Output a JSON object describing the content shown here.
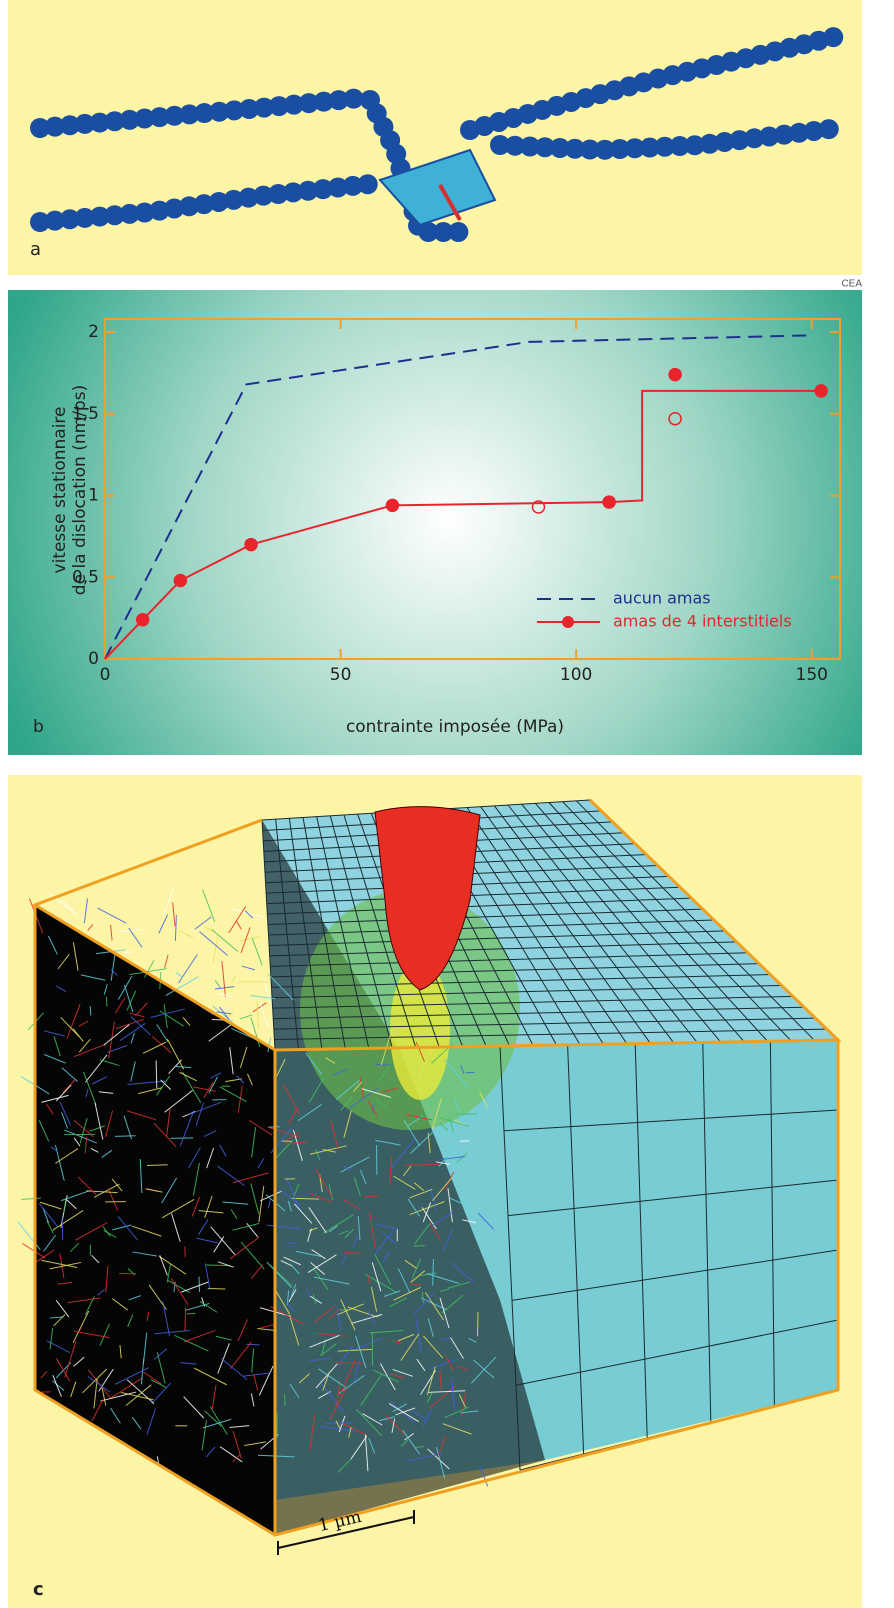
{
  "panel_a": {
    "label": "a"
  },
  "credit": "CEA",
  "panel_b": {
    "label": "b"
  },
  "chart_data": {
    "type": "line",
    "x_label": "contrainte imposée (MPa)",
    "y_label": [
      "vitesse stationnaire",
      "de la dislocation (nm/ps)"
    ],
    "xlim": [
      0,
      156
    ],
    "ylim": [
      0,
      2.08
    ],
    "xticks": [
      0,
      50,
      100,
      150
    ],
    "yticks": [
      0,
      {
        "value": 0.5,
        "label": "0,5"
      },
      1,
      {
        "value": 1.5,
        "label": "1,5"
      },
      2
    ],
    "legend": "lower right",
    "series": [
      {
        "name": "aucun amas",
        "color": "#1f2f8f",
        "dashed": true,
        "x": [
          0,
          30,
          90,
          150
        ],
        "values": [
          0,
          1.68,
          1.94,
          1.98
        ]
      },
      {
        "name": "amas de 4 interstitiels",
        "color": "#e8242c",
        "dashed": false,
        "x": [
          0,
          8,
          16,
          31,
          61,
          107,
          114,
          114,
          152
        ],
        "values": [
          0,
          0.24,
          0.48,
          0.7,
          0.94,
          0.96,
          0.97,
          1.64,
          1.64
        ]
      }
    ],
    "filled_points": {
      "color": "#e8242c",
      "x": [
        8,
        16,
        31,
        61,
        107,
        121,
        152
      ],
      "values": [
        0.24,
        0.48,
        0.7,
        0.94,
        0.96,
        1.74,
        1.64
      ]
    },
    "open_points": {
      "color": "#e8242c",
      "x": [
        92,
        121
      ],
      "values": [
        0.93,
        1.47
      ]
    }
  },
  "panel_c": {
    "label": "c",
    "scale_bar": "1 µm"
  }
}
